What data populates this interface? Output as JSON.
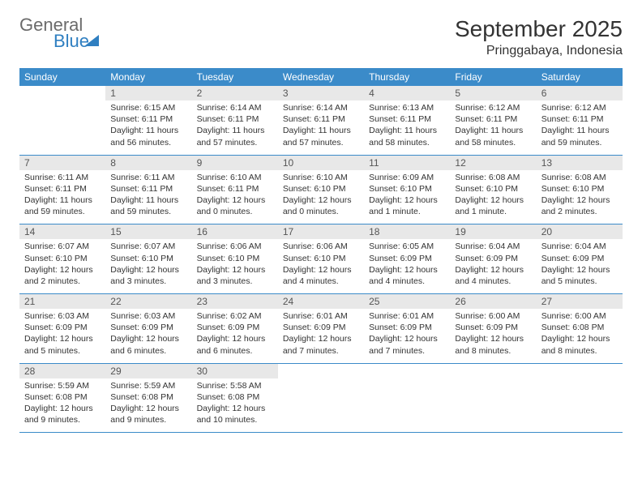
{
  "logo": {
    "word1": "General",
    "word2": "Blue"
  },
  "title": "September 2025",
  "location": "Pringgabaya, Indonesia",
  "colors": {
    "header_bg": "#3b8bc9",
    "header_text": "#ffffff",
    "daynum_bg": "#e8e8e8",
    "daynum_text": "#555555",
    "body_text": "#333333",
    "row_border": "#3b8bc9",
    "logo_gray": "#6b6b6b",
    "logo_blue": "#2f7fc1",
    "page_bg": "#ffffff"
  },
  "typography": {
    "title_fontsize": 28,
    "location_fontsize": 16,
    "header_fontsize": 12,
    "daynum_fontsize": 12,
    "body_fontsize": 10.5
  },
  "weekdays": [
    "Sunday",
    "Monday",
    "Tuesday",
    "Wednesday",
    "Thursday",
    "Friday",
    "Saturday"
  ],
  "weeks": [
    [
      {
        "blank": true
      },
      {
        "n": "1",
        "sunrise": "6:15 AM",
        "sunset": "6:11 PM",
        "daylight": "11 hours and 56 minutes."
      },
      {
        "n": "2",
        "sunrise": "6:14 AM",
        "sunset": "6:11 PM",
        "daylight": "11 hours and 57 minutes."
      },
      {
        "n": "3",
        "sunrise": "6:14 AM",
        "sunset": "6:11 PM",
        "daylight": "11 hours and 57 minutes."
      },
      {
        "n": "4",
        "sunrise": "6:13 AM",
        "sunset": "6:11 PM",
        "daylight": "11 hours and 58 minutes."
      },
      {
        "n": "5",
        "sunrise": "6:12 AM",
        "sunset": "6:11 PM",
        "daylight": "11 hours and 58 minutes."
      },
      {
        "n": "6",
        "sunrise": "6:12 AM",
        "sunset": "6:11 PM",
        "daylight": "11 hours and 59 minutes."
      }
    ],
    [
      {
        "n": "7",
        "sunrise": "6:11 AM",
        "sunset": "6:11 PM",
        "daylight": "11 hours and 59 minutes."
      },
      {
        "n": "8",
        "sunrise": "6:11 AM",
        "sunset": "6:11 PM",
        "daylight": "11 hours and 59 minutes."
      },
      {
        "n": "9",
        "sunrise": "6:10 AM",
        "sunset": "6:11 PM",
        "daylight": "12 hours and 0 minutes."
      },
      {
        "n": "10",
        "sunrise": "6:10 AM",
        "sunset": "6:10 PM",
        "daylight": "12 hours and 0 minutes."
      },
      {
        "n": "11",
        "sunrise": "6:09 AM",
        "sunset": "6:10 PM",
        "daylight": "12 hours and 1 minute."
      },
      {
        "n": "12",
        "sunrise": "6:08 AM",
        "sunset": "6:10 PM",
        "daylight": "12 hours and 1 minute."
      },
      {
        "n": "13",
        "sunrise": "6:08 AM",
        "sunset": "6:10 PM",
        "daylight": "12 hours and 2 minutes."
      }
    ],
    [
      {
        "n": "14",
        "sunrise": "6:07 AM",
        "sunset": "6:10 PM",
        "daylight": "12 hours and 2 minutes."
      },
      {
        "n": "15",
        "sunrise": "6:07 AM",
        "sunset": "6:10 PM",
        "daylight": "12 hours and 3 minutes."
      },
      {
        "n": "16",
        "sunrise": "6:06 AM",
        "sunset": "6:10 PM",
        "daylight": "12 hours and 3 minutes."
      },
      {
        "n": "17",
        "sunrise": "6:06 AM",
        "sunset": "6:10 PM",
        "daylight": "12 hours and 4 minutes."
      },
      {
        "n": "18",
        "sunrise": "6:05 AM",
        "sunset": "6:09 PM",
        "daylight": "12 hours and 4 minutes."
      },
      {
        "n": "19",
        "sunrise": "6:04 AM",
        "sunset": "6:09 PM",
        "daylight": "12 hours and 4 minutes."
      },
      {
        "n": "20",
        "sunrise": "6:04 AM",
        "sunset": "6:09 PM",
        "daylight": "12 hours and 5 minutes."
      }
    ],
    [
      {
        "n": "21",
        "sunrise": "6:03 AM",
        "sunset": "6:09 PM",
        "daylight": "12 hours and 5 minutes."
      },
      {
        "n": "22",
        "sunrise": "6:03 AM",
        "sunset": "6:09 PM",
        "daylight": "12 hours and 6 minutes."
      },
      {
        "n": "23",
        "sunrise": "6:02 AM",
        "sunset": "6:09 PM",
        "daylight": "12 hours and 6 minutes."
      },
      {
        "n": "24",
        "sunrise": "6:01 AM",
        "sunset": "6:09 PM",
        "daylight": "12 hours and 7 minutes."
      },
      {
        "n": "25",
        "sunrise": "6:01 AM",
        "sunset": "6:09 PM",
        "daylight": "12 hours and 7 minutes."
      },
      {
        "n": "26",
        "sunrise": "6:00 AM",
        "sunset": "6:09 PM",
        "daylight": "12 hours and 8 minutes."
      },
      {
        "n": "27",
        "sunrise": "6:00 AM",
        "sunset": "6:08 PM",
        "daylight": "12 hours and 8 minutes."
      }
    ],
    [
      {
        "n": "28",
        "sunrise": "5:59 AM",
        "sunset": "6:08 PM",
        "daylight": "12 hours and 9 minutes."
      },
      {
        "n": "29",
        "sunrise": "5:59 AM",
        "sunset": "6:08 PM",
        "daylight": "12 hours and 9 minutes."
      },
      {
        "n": "30",
        "sunrise": "5:58 AM",
        "sunset": "6:08 PM",
        "daylight": "12 hours and 10 minutes."
      },
      {
        "blank": true
      },
      {
        "blank": true
      },
      {
        "blank": true
      },
      {
        "blank": true
      }
    ]
  ],
  "labels": {
    "sunrise": "Sunrise:",
    "sunset": "Sunset:",
    "daylight": "Daylight:"
  }
}
